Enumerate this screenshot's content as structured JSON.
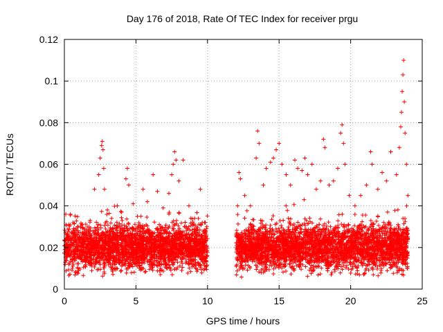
{
  "chart_data": {
    "type": "scatter",
    "title": "Day 176 of 2018, Rate Of TEC Index for receiver prgu",
    "xlabel": "GPS time / hours",
    "ylabel": "ROTI / TECUs",
    "xlim": [
      0,
      25
    ],
    "ylim": [
      0,
      0.12
    ],
    "x_ticks": [
      0,
      5,
      10,
      15,
      20,
      25
    ],
    "x_tick_labels": [
      "0",
      "5",
      "10",
      "15",
      "20",
      "25"
    ],
    "y_ticks": [
      0,
      0.02,
      0.04,
      0.06,
      0.08,
      0.1,
      0.12
    ],
    "y_tick_labels": [
      "0",
      "0.02",
      "0.04",
      "0.06",
      "0.08",
      "0.1",
      "0.12"
    ],
    "grid": true,
    "marker": "+",
    "series": [
      {
        "name": "ROTI",
        "color": "#ff0000",
        "coverage_hours": [
          [
            0,
            10
          ],
          [
            12,
            24
          ]
        ],
        "typical_range": [
          0.005,
          0.035
        ],
        "points": [
          [
            0.1,
            0.036
          ],
          [
            0.3,
            0.031
          ],
          [
            0.6,
            0.028
          ],
          [
            1.0,
            0.027
          ],
          [
            1.4,
            0.029
          ],
          [
            1.8,
            0.033
          ],
          [
            2.1,
            0.048
          ],
          [
            2.4,
            0.055
          ],
          [
            2.5,
            0.063
          ],
          [
            2.6,
            0.069
          ],
          [
            2.65,
            0.071
          ],
          [
            2.7,
            0.067
          ],
          [
            2.75,
            0.058
          ],
          [
            2.8,
            0.048
          ],
          [
            3.0,
            0.038
          ],
          [
            3.3,
            0.034
          ],
          [
            3.7,
            0.04
          ],
          [
            4.0,
            0.037
          ],
          [
            4.3,
            0.053
          ],
          [
            4.4,
            0.058
          ],
          [
            4.5,
            0.05
          ],
          [
            4.8,
            0.041
          ],
          [
            5.1,
            0.035
          ],
          [
            5.5,
            0.048
          ],
          [
            5.8,
            0.042
          ],
          [
            6.2,
            0.055
          ],
          [
            6.5,
            0.047
          ],
          [
            6.9,
            0.039
          ],
          [
            7.3,
            0.046
          ],
          [
            7.5,
            0.055
          ],
          [
            7.6,
            0.06
          ],
          [
            7.7,
            0.066
          ],
          [
            7.8,
            0.062
          ],
          [
            8.0,
            0.052
          ],
          [
            8.3,
            0.062
          ],
          [
            8.7,
            0.04
          ],
          [
            9.1,
            0.034
          ],
          [
            9.5,
            0.048
          ],
          [
            9.8,
            0.032
          ],
          [
            12.1,
            0.04
          ],
          [
            12.2,
            0.056
          ],
          [
            12.3,
            0.053
          ],
          [
            12.6,
            0.045
          ],
          [
            13.0,
            0.04
          ],
          [
            13.4,
            0.063
          ],
          [
            13.5,
            0.076
          ],
          [
            13.6,
            0.07
          ],
          [
            13.9,
            0.05
          ],
          [
            14.1,
            0.058
          ],
          [
            14.4,
            0.061
          ],
          [
            14.6,
            0.063
          ],
          [
            14.8,
            0.067
          ],
          [
            15.0,
            0.07
          ],
          [
            15.2,
            0.06
          ],
          [
            15.5,
            0.055
          ],
          [
            15.8,
            0.05
          ],
          [
            16.1,
            0.062
          ],
          [
            16.3,
            0.058
          ],
          [
            16.6,
            0.057
          ],
          [
            16.8,
            0.063
          ],
          [
            17.0,
            0.055
          ],
          [
            17.3,
            0.06
          ],
          [
            17.6,
            0.048
          ],
          [
            17.9,
            0.052
          ],
          [
            18.1,
            0.072
          ],
          [
            18.2,
            0.068
          ],
          [
            18.5,
            0.05
          ],
          [
            18.8,
            0.052
          ],
          [
            19.1,
            0.058
          ],
          [
            19.3,
            0.075
          ],
          [
            19.4,
            0.079
          ],
          [
            19.5,
            0.07
          ],
          [
            19.6,
            0.06
          ],
          [
            19.9,
            0.045
          ],
          [
            20.3,
            0.04
          ],
          [
            20.7,
            0.045
          ],
          [
            21.1,
            0.05
          ],
          [
            21.4,
            0.066
          ],
          [
            21.5,
            0.06
          ],
          [
            21.9,
            0.048
          ],
          [
            22.2,
            0.056
          ],
          [
            22.5,
            0.052
          ],
          [
            22.8,
            0.066
          ],
          [
            23.2,
            0.055
          ],
          [
            23.4,
            0.068
          ],
          [
            23.5,
            0.078
          ],
          [
            23.55,
            0.085
          ],
          [
            23.6,
            0.095
          ],
          [
            23.65,
            0.103
          ],
          [
            23.7,
            0.11
          ],
          [
            23.75,
            0.09
          ],
          [
            23.8,
            0.075
          ],
          [
            23.9,
            0.06
          ],
          [
            24.0,
            0.045
          ]
        ]
      }
    ]
  }
}
